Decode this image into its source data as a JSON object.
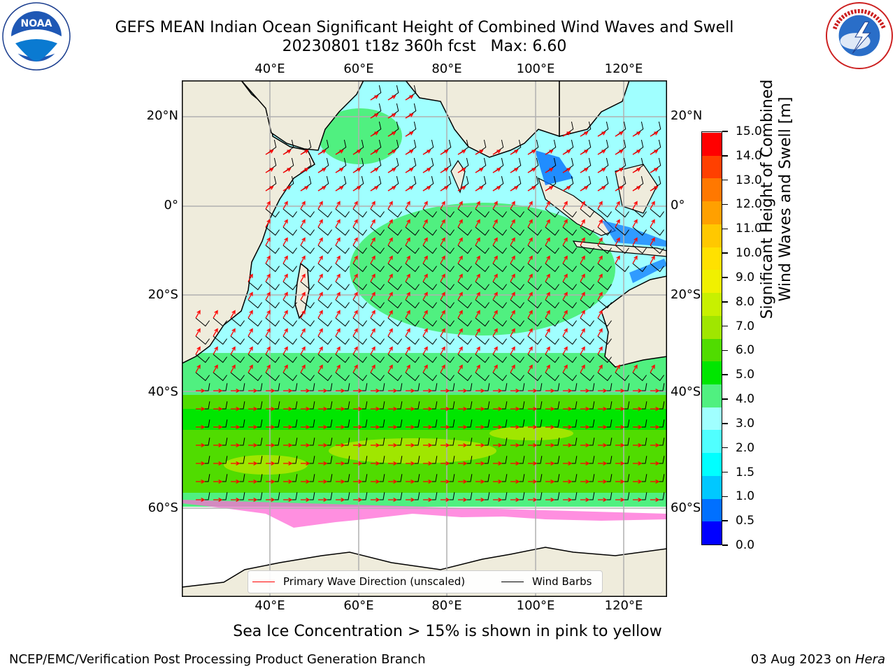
{
  "title": {
    "line1": "GEFS MEAN Indian Ocean Significant Height of Combined Wind Waves and Swell",
    "line2": "20230801 t18z 360h fcst   Max: 6.60"
  },
  "logos": {
    "left": {
      "text": "NOAA",
      "ring_text": "NATIONAL OCEANIC AND ATMOSPHERIC ADMINISTRATION · U.S. DEPARTMENT OF COMMERCE"
    },
    "right": {
      "ring_text": "NATIONAL WEATHER SERVICE"
    }
  },
  "map": {
    "lon_labels": [
      "40°E",
      "60°E",
      "80°E",
      "100°E",
      "120°E"
    ],
    "lat_labels": [
      "20°N",
      "0°",
      "20°S",
      "40°S",
      "60°S"
    ],
    "colors": {
      "land": "#efecdc",
      "ice_free_edge": "#ffffff",
      "grid": "#b0b0b0",
      "wave_arrow": "#ff0000",
      "wind_barb": "#000000"
    }
  },
  "colorbar": {
    "label_line1": "Significant Height of Combined",
    "label_line2": "Wind Waves and Swell [m]",
    "ticks": [
      "0.0",
      "0.5",
      "1.0",
      "1.5",
      "2.0",
      "3.0",
      "4.0",
      "5.0",
      "6.0",
      "7.0",
      "8.0",
      "9.0",
      "10.0",
      "11.0",
      "12.0",
      "13.0",
      "14.0",
      "15.0"
    ],
    "colors": [
      "#0000ff",
      "#0070ff",
      "#00c8ff",
      "#00ffff",
      "#50ffff",
      "#a0ffff",
      "#50f080",
      "#00e600",
      "#50dc00",
      "#a0e600",
      "#c8f000",
      "#f0f000",
      "#ffe100",
      "#ffc800",
      "#ffa000",
      "#ff7800",
      "#ff4000",
      "#ff0000"
    ]
  },
  "legend": {
    "wave": {
      "label": "Primary Wave Direction (unscaled)",
      "color": "#ff0000"
    },
    "wind": {
      "label": "Wind Barbs",
      "color": "#000000"
    }
  },
  "note": "Sea Ice Concentration > 15% is shown in pink to yellow",
  "footer": {
    "left": "NCEP/EMC/Verification Post Processing Product Generation Branch",
    "right_date": "03 Aug 2023 on ",
    "right_host": "Hera"
  }
}
